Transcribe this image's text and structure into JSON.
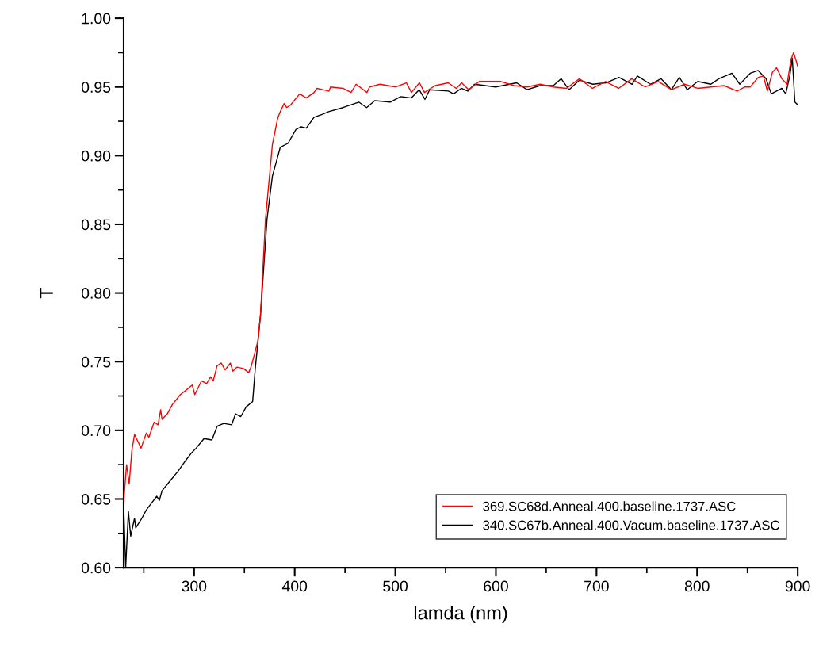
{
  "chart_data": {
    "type": "line",
    "xlabel": "lamda (nm)",
    "ylabel": "T",
    "xlim": [
      230,
      900
    ],
    "ylim": [
      0.6,
      1.0
    ],
    "xticks": [
      300,
      400,
      500,
      600,
      700,
      800,
      900
    ],
    "yticks": [
      {
        "value": 0.6,
        "label": "0.60"
      },
      {
        "value": 0.65,
        "label": "0.65"
      },
      {
        "value": 0.7,
        "label": "0.70"
      },
      {
        "value": 0.75,
        "label": "0.75"
      },
      {
        "value": 0.8,
        "label": "0.80"
      },
      {
        "value": 0.85,
        "label": "0.85"
      },
      {
        "value": 0.9,
        "label": "0.90"
      },
      {
        "value": 0.95,
        "label": "0.95"
      },
      {
        "value": 1.0,
        "label": "1.00"
      }
    ],
    "legend": "lower right",
    "marker": "none",
    "line_style": "solid",
    "series": [
      {
        "name": "369.SC68d.Anneal.400.baseline.1737.ASC",
        "color": "#ff0000",
        "x": [
          230,
          232.9,
          235.5,
          238.1,
          240.8,
          243.4,
          247.3,
          252.5,
          255.1,
          260.3,
          264.2,
          266.8,
          268.1,
          273.4,
          278.6,
          286.4,
          291.6,
          298.1,
          300.7,
          307.3,
          312.5,
          316.4,
          319,
          322.9,
          326.9,
          330.8,
          336,
          338.6,
          342.5,
          349.1,
          354.3,
          356.9,
          359.5,
          363.4,
          366,
          371,
          377.8,
          383,
          385,
          389.5,
          392,
          396,
          405,
          411.5,
          419.3,
          422,
          434,
          435.6,
          448,
          456,
          461,
          471.8,
          474.4,
          484.8,
          500.5,
          511,
          516,
          524,
          529,
          539.6,
          552.7,
          560.5,
          566,
          573,
          583.5,
          604.9,
          618,
          631,
          644,
          657,
          670,
          683,
          696,
          709,
          722,
          735,
          748.4,
          761.5,
          774.5,
          787.6,
          800.6,
          813.7,
          826.7,
          839.8,
          847.6,
          852.8,
          860.7,
          865.9,
          869.8,
          875,
          879,
          884.2,
          889.4,
          893.3,
          895.9,
          897.2,
          900
        ],
        "values": [
          0.648,
          0.675,
          0.661,
          0.685,
          0.697,
          0.693,
          0.687,
          0.698,
          0.695,
          0.706,
          0.704,
          0.715,
          0.708,
          0.712,
          0.719,
          0.726,
          0.729,
          0.733,
          0.726,
          0.736,
          0.734,
          0.739,
          0.736,
          0.747,
          0.749,
          0.744,
          0.749,
          0.743,
          0.746,
          0.745,
          0.742,
          0.747,
          0.754,
          0.765,
          0.784,
          0.854,
          0.908,
          0.927,
          0.931,
          0.938,
          0.935,
          0.937,
          0.945,
          0.942,
          0.946,
          0.949,
          0.947,
          0.95,
          0.949,
          0.946,
          0.952,
          0.946,
          0.95,
          0.952,
          0.95,
          0.953,
          0.946,
          0.953,
          0.946,
          0.951,
          0.953,
          0.949,
          0.953,
          0.948,
          0.954,
          0.954,
          0.951,
          0.95,
          0.952,
          0.95,
          0.949,
          0.956,
          0.949,
          0.954,
          0.949,
          0.956,
          0.95,
          0.954,
          0.948,
          0.952,
          0.949,
          0.95,
          0.951,
          0.947,
          0.95,
          0.95,
          0.957,
          0.958,
          0.947,
          0.961,
          0.964,
          0.956,
          0.952,
          0.97,
          0.975,
          0.972,
          0.965
        ]
      },
      {
        "name": "340.SC67b.Anneal.400.Vacum.baseline.1737.ASC",
        "color": "#000000",
        "x": [
          230,
          232,
          234.7,
          237,
          240.8,
          242,
          247.3,
          252.5,
          257.7,
          262.9,
          265.5,
          268.1,
          275.9,
          283.8,
          291.6,
          296.8,
          302,
          309.9,
          317.7,
          322.9,
          329.5,
          337.3,
          341.2,
          346.4,
          351.7,
          358.2,
          360.8,
          363.4,
          366,
          372.5,
          377.8,
          385.6,
          393.4,
          401.2,
          406.4,
          411.5,
          419.3,
          427.2,
          433.7,
          448,
          463.7,
          471.5,
          479.6,
          495,
          505.3,
          516,
          523.7,
          529.5,
          534.2,
          552.7,
          557.9,
          565.7,
          572,
          578.8,
          599.7,
          620.6,
          631,
          644,
          657.1,
          664.9,
          672.7,
          683.2,
          696.2,
          709.3,
          722.3,
          735.4,
          740.6,
          753.6,
          764.1,
          774.5,
          782.3,
          790.2,
          800.6,
          813.7,
          821.5,
          834.6,
          842.4,
          852.8,
          860.7,
          868.5,
          873.7,
          879,
          884.2,
          888.1,
          892.1,
          894.6,
          897.2,
          900
        ],
        "values": [
          0.645,
          0.6,
          0.641,
          0.623,
          0.636,
          0.629,
          0.635,
          0.642,
          0.647,
          0.652,
          0.649,
          0.656,
          0.663,
          0.67,
          0.678,
          0.683,
          0.687,
          0.694,
          0.693,
          0.703,
          0.705,
          0.704,
          0.712,
          0.71,
          0.717,
          0.721,
          0.745,
          0.764,
          0.784,
          0.854,
          0.885,
          0.906,
          0.909,
          0.919,
          0.921,
          0.92,
          0.928,
          0.93,
          0.932,
          0.935,
          0.939,
          0.935,
          0.94,
          0.939,
          0.943,
          0.942,
          0.948,
          0.941,
          0.948,
          0.947,
          0.945,
          0.949,
          0.947,
          0.952,
          0.95,
          0.953,
          0.948,
          0.951,
          0.951,
          0.956,
          0.948,
          0.955,
          0.952,
          0.953,
          0.957,
          0.952,
          0.958,
          0.952,
          0.956,
          0.948,
          0.957,
          0.948,
          0.954,
          0.952,
          0.956,
          0.96,
          0.952,
          0.96,
          0.962,
          0.956,
          0.945,
          0.947,
          0.949,
          0.945,
          0.958,
          0.971,
          0.939,
          0.937
        ]
      }
    ]
  }
}
